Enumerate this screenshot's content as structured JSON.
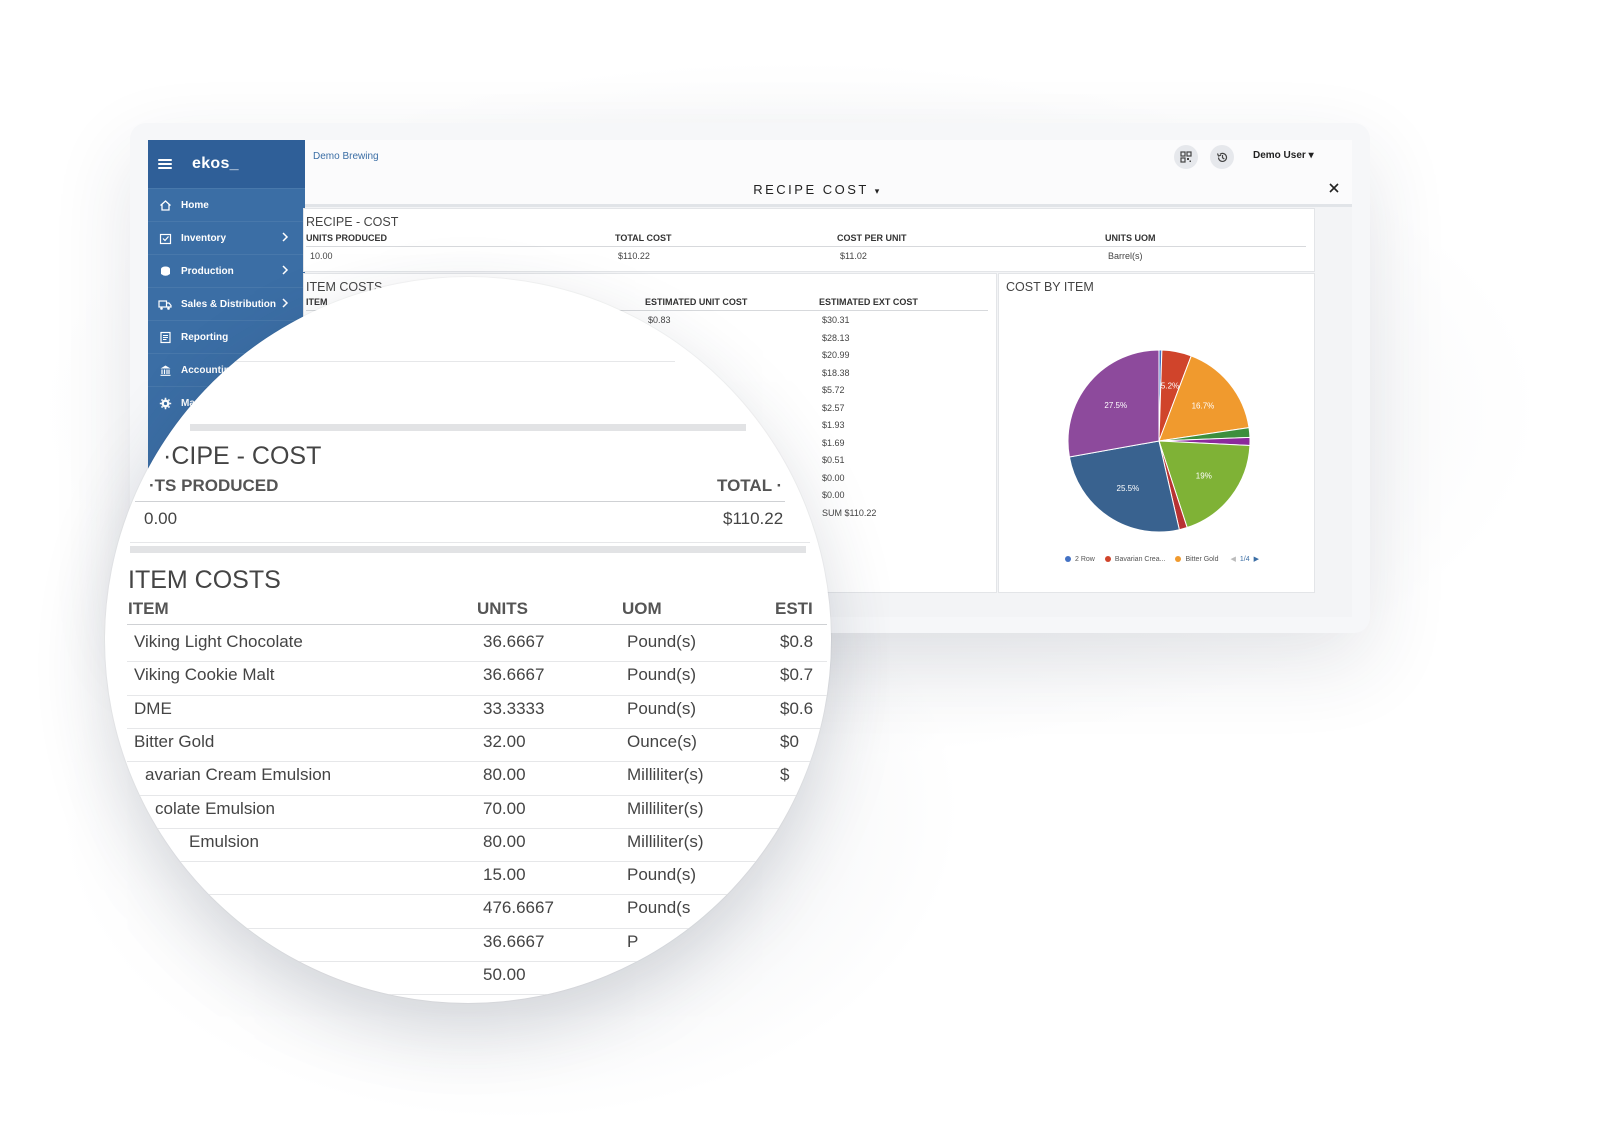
{
  "colors": {
    "sidebar": "#3b6ea5",
    "sidebar_head": "#2f5f98",
    "link": "#3b6ea5",
    "pie": [
      "#4472c4",
      "#d0442b",
      "#f09a2e",
      "#3d8f3d",
      "#8b2a9c",
      "#7fb236",
      "#b83232",
      "#39628f",
      "#8d4a9c"
    ]
  },
  "app": {
    "logo": "ekos_",
    "breadcrumb": "Demo Brewing",
    "user": "Demo User",
    "page_title": "RECIPE COST"
  },
  "sidebar": {
    "items": [
      {
        "label": "Home",
        "icon": "home-icon"
      },
      {
        "label": "Inventory",
        "icon": "inventory-icon"
      },
      {
        "label": "Production",
        "icon": "production-icon"
      },
      {
        "label": "Sales & Distribution",
        "icon": "truck-icon"
      },
      {
        "label": "Reporting",
        "icon": "report-icon"
      },
      {
        "label": "Accounting & ",
        "icon": "bank-icon"
      },
      {
        "label": "Mana",
        "icon": "gear-icon"
      }
    ]
  },
  "recipe_cost": {
    "title": "RECIPE - COST",
    "headers": [
      "UNITS PRODUCED",
      "TOTAL COST",
      "COST PER UNIT",
      "UNITS UOM"
    ],
    "values": [
      "10.00",
      "$110.22",
      "$11.02",
      "Barrel(s)"
    ]
  },
  "item_costs": {
    "title": "ITEM COSTS",
    "headers": [
      "ITEM",
      "ESTIMATED UNIT COST",
      "ESTIMATED EXT COST"
    ],
    "unit_costs": [
      "$0.83",
      "·.·¹"
    ],
    "ext_costs": [
      "$30.31",
      "$28.13",
      "$20.99",
      "$18.38",
      "$5.72",
      "$2.57",
      "$1.93",
      "$1.69",
      "$0.51",
      "$0.00",
      "$0.00",
      "SUM $110.22"
    ]
  },
  "cost_by_item": {
    "title": "COST BY ITEM",
    "legend": [
      "2 Row",
      "Bavarian Crea...",
      "Bitter Gold"
    ],
    "pager": "1/4"
  },
  "chart_data": {
    "type": "pie",
    "title": "COST BY ITEM",
    "slices": [
      {
        "value": 0.5
      },
      {
        "value": 5.2,
        "label": "5.2%"
      },
      {
        "value": 16.7,
        "label": "16.7%"
      },
      {
        "value": 1.7
      },
      {
        "value": 1.4
      },
      {
        "value": 19.0,
        "label": "19%"
      },
      {
        "value": 1.4
      },
      {
        "value": 25.5,
        "label": "25.5%"
      },
      {
        "value": 27.5,
        "label": "27.5%"
      }
    ],
    "legend": [
      "2 Row",
      "Bavarian Crea...",
      "Bitter Gold"
    ]
  },
  "zoom": {
    "recipe_title": "·CIPE - COST",
    "units_header": "·TS PRODUCED",
    "total_header": "TOTAL ·",
    "units_value": "0.00",
    "total_value": "$110.22",
    "items_title": "ITEM COSTS",
    "headers": [
      "ITEM",
      "UNITS",
      "UOM",
      "ESTI"
    ],
    "rows": [
      {
        "item": "Viking Light Chocolate",
        "units": "36.6667",
        "uom": "Pound(s)",
        "est": "$0.8"
      },
      {
        "item": "Viking Cookie Malt",
        "units": "36.6667",
        "uom": "Pound(s)",
        "est": "$0.7"
      },
      {
        "item": "DME",
        "units": "33.3333",
        "uom": "Pound(s)",
        "est": "$0.6"
      },
      {
        "item": "Bitter Gold",
        "units": "32.00",
        "uom": "Ounce(s)",
        "est": "$0"
      },
      {
        "item": "avarian Cream Emulsion",
        "units": "80.00",
        "uom": "Milliliter(s)",
        "est": "$"
      },
      {
        "item": "colate Emulsion",
        "units": "70.00",
        "uom": "Milliliter(s)",
        "est": ""
      },
      {
        "item": "Emulsion",
        "units": "80.00",
        "uom": "Milliliter(s)",
        "est": ""
      },
      {
        "item": "",
        "units": "15.00",
        "uom": "Pound(s)",
        "est": ""
      },
      {
        "item": "",
        "units": "476.6667",
        "uom": "Pound(s",
        "est": ""
      },
      {
        "item": "",
        "units": "36.6667",
        "uom": "P",
        "est": ""
      },
      {
        "item": "",
        "units": "50.00",
        "uom": "",
        "est": ""
      }
    ]
  }
}
